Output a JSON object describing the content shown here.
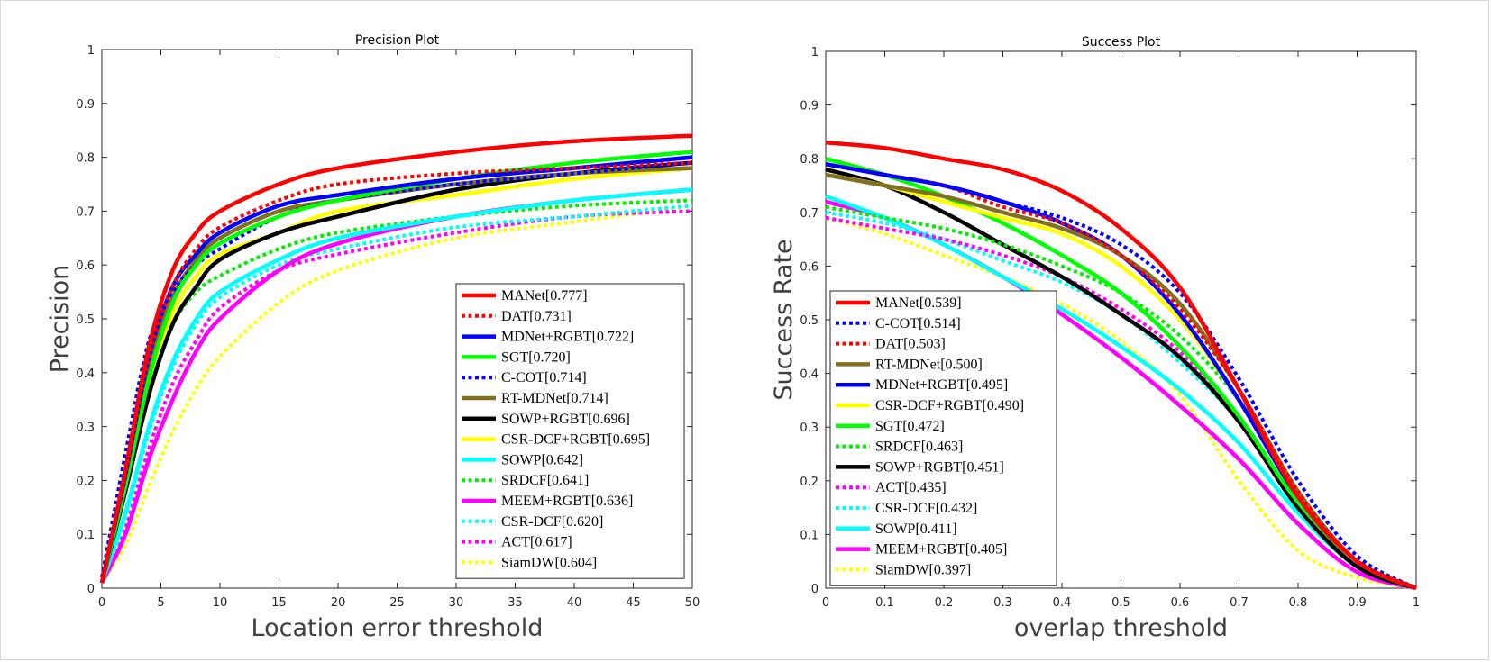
{
  "chart_data": [
    {
      "type": "line",
      "title": "Precision Plot",
      "xlabel": "Location error threshold",
      "ylabel": "Precision",
      "xlim": [
        0,
        50
      ],
      "ylim": [
        0,
        1
      ],
      "xticks": [
        "0",
        "5",
        "10",
        "15",
        "20",
        "25",
        "30",
        "35",
        "40",
        "45",
        "50"
      ],
      "yticks": [
        "0",
        "0.1",
        "0.2",
        "0.3",
        "0.4",
        "0.5",
        "0.6",
        "0.7",
        "0.8",
        "0.9",
        "1"
      ],
      "legend_position": "bottom-right",
      "x": [
        0,
        2,
        4,
        6,
        8,
        10,
        15,
        20,
        30,
        40,
        50
      ],
      "series": [
        {
          "name": "MANet[0.777]",
          "color": "#ff0000",
          "style": "solid",
          "values": [
            0.01,
            0.22,
            0.45,
            0.59,
            0.66,
            0.7,
            0.75,
            0.78,
            0.81,
            0.83,
            0.84
          ]
        },
        {
          "name": "DAT[0.731]",
          "color": "#ff0000",
          "style": "dotted",
          "values": [
            0.01,
            0.21,
            0.43,
            0.56,
            0.63,
            0.67,
            0.72,
            0.75,
            0.77,
            0.78,
            0.79
          ]
        },
        {
          "name": "MDNet+RGBT[0.722]",
          "color": "#0000ff",
          "style": "solid",
          "values": [
            0.01,
            0.21,
            0.43,
            0.56,
            0.62,
            0.66,
            0.71,
            0.73,
            0.76,
            0.78,
            0.8
          ]
        },
        {
          "name": "SGT[0.720]",
          "color": "#00ff00",
          "style": "solid",
          "values": [
            0.01,
            0.19,
            0.39,
            0.53,
            0.6,
            0.64,
            0.69,
            0.72,
            0.76,
            0.79,
            0.81
          ]
        },
        {
          "name": "C-COT[0.714]",
          "color": "#0000ff",
          "style": "dotted",
          "values": [
            0.02,
            0.25,
            0.46,
            0.55,
            0.6,
            0.63,
            0.69,
            0.72,
            0.75,
            0.77,
            0.79
          ]
        },
        {
          "name": "RT-MDNet[0.714]",
          "color": "#807020",
          "style": "solid",
          "values": [
            0.01,
            0.2,
            0.41,
            0.54,
            0.61,
            0.65,
            0.7,
            0.72,
            0.75,
            0.77,
            0.78
          ]
        },
        {
          "name": "SOWP+RGBT[0.696]",
          "color": "#000000",
          "style": "solid",
          "values": [
            0.01,
            0.18,
            0.36,
            0.49,
            0.56,
            0.61,
            0.66,
            0.69,
            0.74,
            0.77,
            0.79
          ]
        },
        {
          "name": "CSR-DCF+RGBT[0.695]",
          "color": "#ffff00",
          "style": "solid",
          "values": [
            0.01,
            0.18,
            0.38,
            0.51,
            0.58,
            0.62,
            0.66,
            0.7,
            0.73,
            0.76,
            0.78
          ]
        },
        {
          "name": "SOWP[0.642]",
          "color": "#00ffff",
          "style": "solid",
          "values": [
            0.01,
            0.14,
            0.3,
            0.42,
            0.5,
            0.55,
            0.61,
            0.65,
            0.69,
            0.72,
            0.74
          ]
        },
        {
          "name": "SRDCF[0.641]",
          "color": "#00ee00",
          "style": "dotted",
          "values": [
            0.01,
            0.19,
            0.38,
            0.49,
            0.55,
            0.58,
            0.63,
            0.66,
            0.69,
            0.71,
            0.72
          ]
        },
        {
          "name": "MEEM+RGBT[0.636]",
          "color": "#ff00ff",
          "style": "solid",
          "values": [
            0.01,
            0.1,
            0.24,
            0.35,
            0.44,
            0.5,
            0.59,
            0.64,
            0.69,
            0.72,
            0.74
          ]
        },
        {
          "name": "CSR-DCF[0.620]",
          "color": "#00ffff",
          "style": "dotted",
          "values": [
            0.01,
            0.13,
            0.29,
            0.41,
            0.49,
            0.54,
            0.6,
            0.63,
            0.67,
            0.69,
            0.71
          ]
        },
        {
          "name": "ACT[0.617]",
          "color": "#ff00ff",
          "style": "dotted",
          "values": [
            0.01,
            0.11,
            0.26,
            0.38,
            0.46,
            0.52,
            0.59,
            0.62,
            0.66,
            0.69,
            0.7
          ]
        },
        {
          "name": "SiamDW[0.604]",
          "color": "#ffff00",
          "style": "dotted",
          "values": [
            0.01,
            0.08,
            0.19,
            0.29,
            0.37,
            0.43,
            0.53,
            0.59,
            0.65,
            0.68,
            0.71
          ]
        }
      ]
    },
    {
      "type": "line",
      "title": "Success Plot",
      "xlabel": "overlap threshold",
      "ylabel": "Success Rate",
      "xlim": [
        0,
        1
      ],
      "ylim": [
        0,
        1
      ],
      "xticks": [
        "0",
        "0.1",
        "0.2",
        "0.3",
        "0.4",
        "0.5",
        "0.6",
        "0.7",
        "0.8",
        "0.9",
        "1"
      ],
      "yticks": [
        "0",
        "0.1",
        "0.2",
        "0.3",
        "0.4",
        "0.5",
        "0.6",
        "0.7",
        "0.8",
        "0.9",
        "1"
      ],
      "legend_position": "bottom-left",
      "x": [
        0,
        0.1,
        0.2,
        0.3,
        0.4,
        0.5,
        0.6,
        0.7,
        0.8,
        0.9,
        1.0
      ],
      "series": [
        {
          "name": "MANet[0.539]",
          "color": "#ff0000",
          "style": "solid",
          "values": [
            0.83,
            0.82,
            0.8,
            0.78,
            0.74,
            0.67,
            0.56,
            0.37,
            0.17,
            0.05,
            0.0
          ]
        },
        {
          "name": "C-COT[0.514]",
          "color": "#0000ff",
          "style": "dotted",
          "values": [
            0.79,
            0.77,
            0.75,
            0.72,
            0.69,
            0.64,
            0.55,
            0.39,
            0.2,
            0.06,
            0.0
          ]
        },
        {
          "name": "DAT[0.503]",
          "color": "#ff0000",
          "style": "dotted",
          "values": [
            0.79,
            0.77,
            0.75,
            0.71,
            0.68,
            0.62,
            0.52,
            0.37,
            0.18,
            0.05,
            0.0
          ]
        },
        {
          "name": "RT-MDNet[0.500]",
          "color": "#807020",
          "style": "solid",
          "values": [
            0.77,
            0.75,
            0.73,
            0.7,
            0.67,
            0.62,
            0.53,
            0.37,
            0.18,
            0.05,
            0.0
          ]
        },
        {
          "name": "MDNet+RGBT[0.495]",
          "color": "#0000ff",
          "style": "solid",
          "values": [
            0.79,
            0.77,
            0.75,
            0.72,
            0.68,
            0.62,
            0.51,
            0.35,
            0.17,
            0.05,
            0.0
          ]
        },
        {
          "name": "CSR-DCF+RGBT[0.490]",
          "color": "#ffff00",
          "style": "solid",
          "values": [
            0.77,
            0.75,
            0.72,
            0.69,
            0.66,
            0.6,
            0.5,
            0.35,
            0.17,
            0.05,
            0.0
          ]
        },
        {
          "name": "SGT[0.472]",
          "color": "#00ff00",
          "style": "solid",
          "values": [
            0.8,
            0.77,
            0.73,
            0.68,
            0.62,
            0.55,
            0.45,
            0.32,
            0.16,
            0.05,
            0.0
          ]
        },
        {
          "name": "SRDCF[0.463]",
          "color": "#00ee00",
          "style": "dotted",
          "values": [
            0.71,
            0.69,
            0.67,
            0.64,
            0.6,
            0.55,
            0.47,
            0.35,
            0.18,
            0.05,
            0.0
          ]
        },
        {
          "name": "SOWP+RGBT[0.451]",
          "color": "#000000",
          "style": "solid",
          "values": [
            0.78,
            0.75,
            0.7,
            0.64,
            0.58,
            0.51,
            0.43,
            0.31,
            0.15,
            0.04,
            0.0
          ]
        },
        {
          "name": "ACT[0.435]",
          "color": "#ff00ff",
          "style": "dotted",
          "values": [
            0.69,
            0.67,
            0.65,
            0.62,
            0.58,
            0.52,
            0.44,
            0.32,
            0.16,
            0.05,
            0.0
          ]
        },
        {
          "name": "CSR-DCF[0.432]",
          "color": "#00ffff",
          "style": "dotted",
          "values": [
            0.7,
            0.68,
            0.65,
            0.61,
            0.57,
            0.51,
            0.42,
            0.31,
            0.15,
            0.04,
            0.0
          ]
        },
        {
          "name": "SOWP[0.411]",
          "color": "#00ffff",
          "style": "solid",
          "values": [
            0.73,
            0.69,
            0.64,
            0.58,
            0.52,
            0.45,
            0.37,
            0.27,
            0.14,
            0.04,
            0.0
          ]
        },
        {
          "name": "MEEM+RGBT[0.405]",
          "color": "#ff00ff",
          "style": "solid",
          "values": [
            0.72,
            0.69,
            0.64,
            0.58,
            0.51,
            0.43,
            0.34,
            0.24,
            0.12,
            0.03,
            0.0
          ]
        },
        {
          "name": "SiamDW[0.397]",
          "color": "#ffff00",
          "style": "dotted",
          "values": [
            0.69,
            0.66,
            0.62,
            0.58,
            0.53,
            0.46,
            0.36,
            0.2,
            0.07,
            0.02,
            0.0
          ]
        }
      ]
    }
  ]
}
